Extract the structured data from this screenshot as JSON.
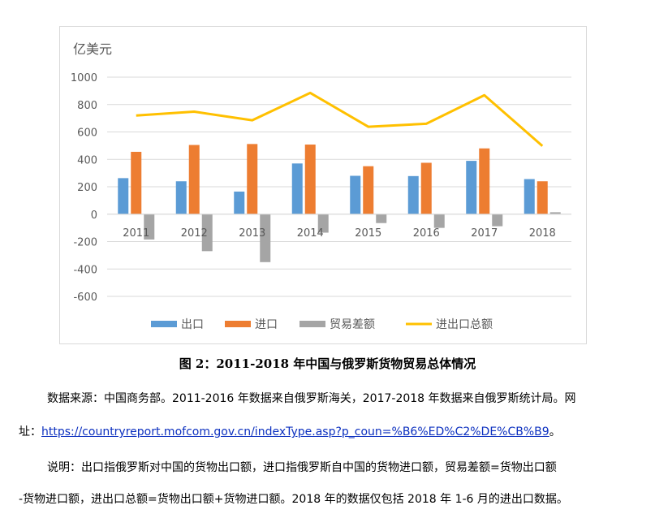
{
  "chart_data": {
    "type": "bar+line",
    "unit_label": "亿美元",
    "categories": [
      "2011",
      "2012",
      "2013",
      "2014",
      "2015",
      "2016",
      "2017",
      "2018"
    ],
    "series": [
      {
        "name": "出口",
        "type": "bar",
        "color": "#5b9bd5",
        "values": [
          263,
          240,
          165,
          370,
          280,
          278,
          389,
          256
        ]
      },
      {
        "name": "进口",
        "type": "bar",
        "color": "#ed7d31",
        "values": [
          455,
          505,
          512,
          508,
          350,
          375,
          480,
          240
        ]
      },
      {
        "name": "贸易差额",
        "type": "bar",
        "color": "#a5a5a5",
        "values": [
          -185,
          -270,
          -350,
          -135,
          -65,
          -100,
          -88,
          14
        ]
      },
      {
        "name": "进出口总额",
        "type": "line",
        "color": "#ffc000",
        "values": [
          720,
          748,
          685,
          885,
          638,
          660,
          868,
          498
        ]
      }
    ],
    "ylim": [
      -600,
      1000
    ],
    "yticks": [
      1000,
      800,
      600,
      400,
      200,
      0,
      -200,
      -400,
      -600
    ],
    "grid": true,
    "legend_position": "bottom"
  },
  "caption": "图 2：2011-2018 年中国与俄罗斯货物贸易总体情况",
  "source_line": "数据来源：中国商务部。2011-2016 年数据来自俄罗斯海关，2017-2018 年数据来自俄罗斯统计局。网",
  "url_prefix": "址：",
  "url": "https://countryreport.mofcom.gov.cn/indexType.asp?p_coun=%B6%ED%C2%DE%CB%B9",
  "url_suffix": "。",
  "note_line1": "说明：出口指俄罗斯对中国的货物出口额，进口指俄罗斯自中国的货物进口额，贸易差额=货物出口额",
  "note_line2": "-货物进口额，进出口总额=货物出口额+货物进口额。2018 年的数据仅包括 2018 年 1-6 月的进出口数据。"
}
